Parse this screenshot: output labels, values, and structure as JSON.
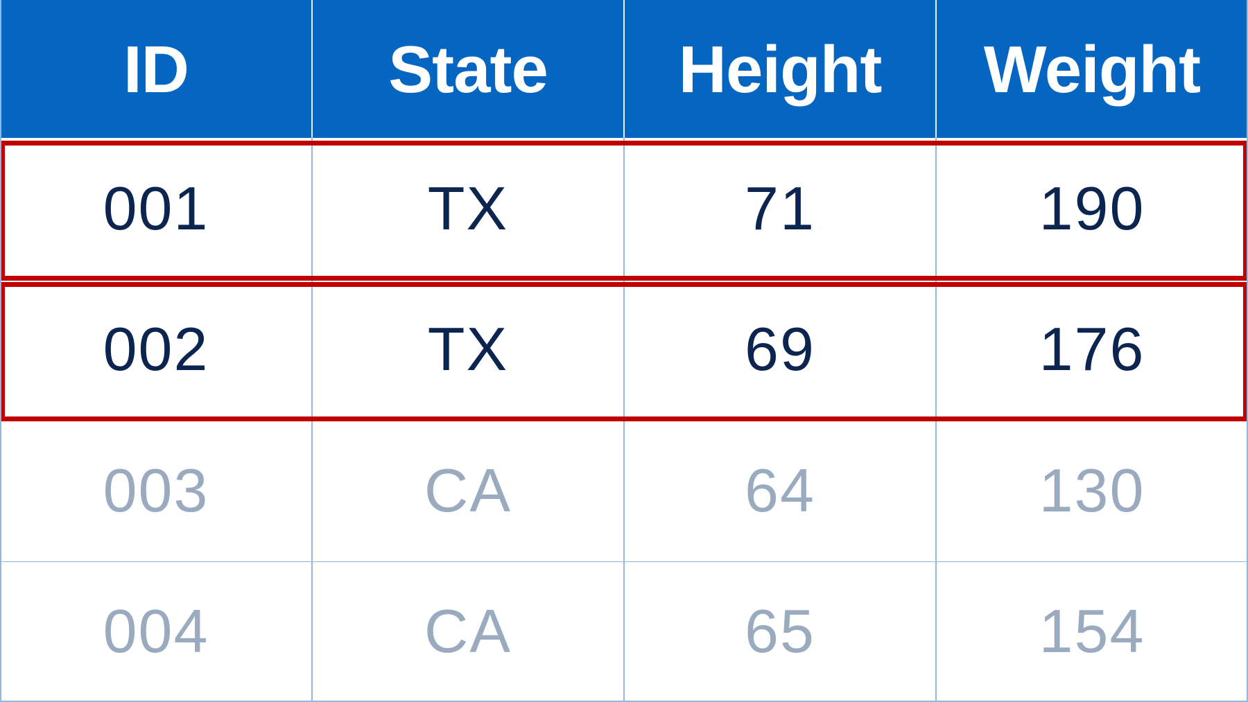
{
  "chart_data": {
    "type": "table",
    "columns": [
      "ID",
      "State",
      "Height",
      "Weight"
    ],
    "rows": [
      [
        "001",
        "TX",
        "71",
        "190"
      ],
      [
        "002",
        "TX",
        "69",
        "176"
      ],
      [
        "003",
        "CA",
        "64",
        "130"
      ],
      [
        "004",
        "CA",
        "65",
        "154"
      ]
    ],
    "highlighted_rows": [
      0,
      1
    ],
    "colors": {
      "header_background": "#0566c2",
      "header_text": "#ffffff",
      "highlighted_text": "#0c2550",
      "dimmed_text": "#9aabc0",
      "grid_line": "#8fb9e3",
      "highlight_frame": "#c00000"
    }
  }
}
